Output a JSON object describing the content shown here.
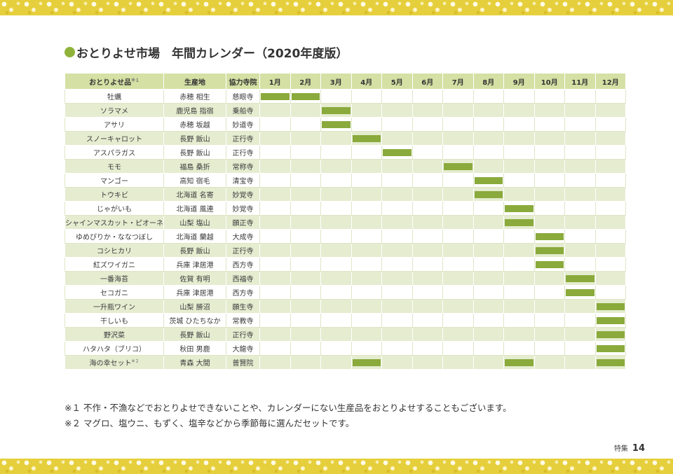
{
  "title": "おとりよせ市場　年間カレンダー（2020年度版）",
  "header": {
    "product": "おとりよせ品",
    "product_note": "※１",
    "origin": "生産地",
    "temple": "協力寺院",
    "months": [
      "1月",
      "2月",
      "3月",
      "4月",
      "5月",
      "6月",
      "7月",
      "8月",
      "9月",
      "10月",
      "11月",
      "12月"
    ]
  },
  "rows": [
    {
      "product": "牡蠣",
      "origin": "赤穂 相生",
      "temple": "慈眼寺",
      "months": [
        1,
        2
      ]
    },
    {
      "product": "ソラマメ",
      "origin": "鹿児島 指宿",
      "temple": "乗船寺",
      "months": [
        3
      ]
    },
    {
      "product": "アサリ",
      "origin": "赤穂 坂越",
      "temple": "妙道寺",
      "months": [
        3
      ]
    },
    {
      "product": "スノーキャロット",
      "origin": "長野 飯山",
      "temple": "正行寺",
      "months": [
        4
      ]
    },
    {
      "product": "アスパラガス",
      "origin": "長野 飯山",
      "temple": "正行寺",
      "months": [
        5
      ]
    },
    {
      "product": "モモ",
      "origin": "福島 桑折",
      "temple": "常称寺",
      "months": [
        7
      ]
    },
    {
      "product": "マンゴー",
      "origin": "高知 宿毛",
      "temple": "清宝寺",
      "months": [
        8
      ]
    },
    {
      "product": "トウキビ",
      "origin": "北海道 名寄",
      "temple": "妙覚寺",
      "months": [
        8
      ]
    },
    {
      "product": "じゃがいも",
      "origin": "北海道 風連",
      "temple": "妙覚寺",
      "months": [
        9
      ]
    },
    {
      "product": "シャインマスカット・ピオーネ",
      "origin": "山梨 塩山",
      "temple": "願正寺",
      "months": [
        9
      ]
    },
    {
      "product": "ゆめぴりか・ななつぼし",
      "origin": "北海道 蘭越",
      "temple": "大成寺",
      "months": [
        10
      ]
    },
    {
      "product": "コシヒカリ",
      "origin": "長野 飯山",
      "temple": "正行寺",
      "months": [
        10
      ]
    },
    {
      "product": "紅ズワイガニ",
      "origin": "兵庫 津居港",
      "temple": "西方寺",
      "months": [
        10
      ]
    },
    {
      "product": "一番海苔",
      "origin": "佐賀 有明",
      "temple": "西福寺",
      "months": [
        11
      ]
    },
    {
      "product": "セコガニ",
      "origin": "兵庫 津居港",
      "temple": "西方寺",
      "months": [
        11
      ]
    },
    {
      "product": "一升瓶ワイン",
      "origin": "山梨 勝沼",
      "temple": "願生寺",
      "months": [
        12
      ]
    },
    {
      "product": "干しいも",
      "origin": "茨城 ひたちなか",
      "temple": "常教寺",
      "months": [
        12
      ]
    },
    {
      "product": "野沢菜",
      "origin": "長野 飯山",
      "temple": "正行寺",
      "months": [
        12
      ]
    },
    {
      "product": "ハタハタ（ブリコ）",
      "origin": "秋田 男鹿",
      "temple": "大龍寺",
      "months": [
        12
      ]
    },
    {
      "product": "海の幸セット",
      "note": "※２",
      "origin": "青森 大間",
      "temple": "普賢院",
      "months": [
        4,
        9,
        12
      ]
    }
  ],
  "notes": [
    "※１ 不作・不漁などでおとりよせできないことや、カレンダーにない生産品をおとりよせすることもございます。",
    "※２ マグロ、塩ウニ、もずく、塩辛などから季節毎に選んだセットです。"
  ],
  "footer": {
    "label": "特集",
    "page": "14"
  },
  "colors": {
    "bar": "#8aaa3c",
    "header_bg": "#d4e0a4",
    "stripe": "#e5ecd0",
    "dot": "#8fb33a",
    "band": "#e6cf3c"
  }
}
